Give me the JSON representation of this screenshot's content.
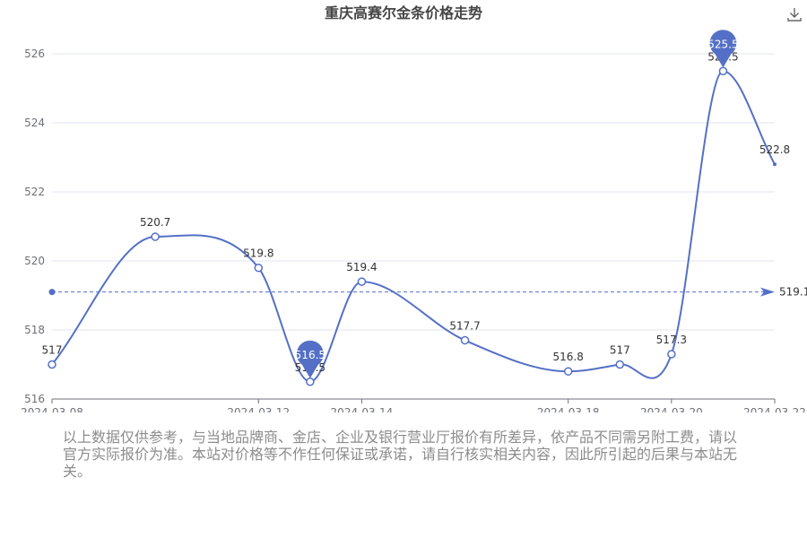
{
  "chart_data": {
    "type": "line",
    "title": "重庆高赛尔金条价格走势",
    "x": [
      "2024-03-08",
      "2024-03-10",
      "2024-03-12",
      "2024-03-13",
      "2024-03-14",
      "2024-03-16",
      "2024-03-18",
      "2024-03-19",
      "2024-03-20",
      "2024-03-21",
      "2024-03-22"
    ],
    "x_ticks": [
      "2024-03-08",
      "2024-03-12",
      "2024-03-14",
      "2024-03-18",
      "2024-03-20",
      "2024-03-22"
    ],
    "series": [
      {
        "values": [
          517,
          520.7,
          519.8,
          516.5,
          519.4,
          517.7,
          516.8,
          517,
          517.3,
          525.5,
          522.8
        ],
        "labels": [
          "517",
          "520.7",
          "519.8",
          "516.5",
          "519.4",
          "517.7",
          "516.8",
          "517",
          "517.3",
          "525.5",
          "522.8"
        ]
      }
    ],
    "ylim": [
      516,
      526
    ],
    "y_ticks": [
      516,
      518,
      520,
      522,
      524,
      526
    ],
    "min_marker": {
      "value": 516.5,
      "label": "516.5"
    },
    "max_marker": {
      "value": 525.5,
      "label": "525.5"
    },
    "average": {
      "value": 519.1,
      "label": "519.1"
    },
    "grid": true,
    "colors": {
      "line": "#5470c6",
      "grid": "#e0e6f1",
      "axis": "#6e7079"
    }
  },
  "toolbar": {
    "download_icon": "download-icon"
  },
  "disclaimer": "以上数据仅供参考，与当地品牌商、金店、企业及银行营业厅报价有所差异，依产品不同需另附工费，请以官方实际报价为准。本站对价格等不作任何保证或承诺，请自行核实相关内容，因此所引起的后果与本站无关。"
}
